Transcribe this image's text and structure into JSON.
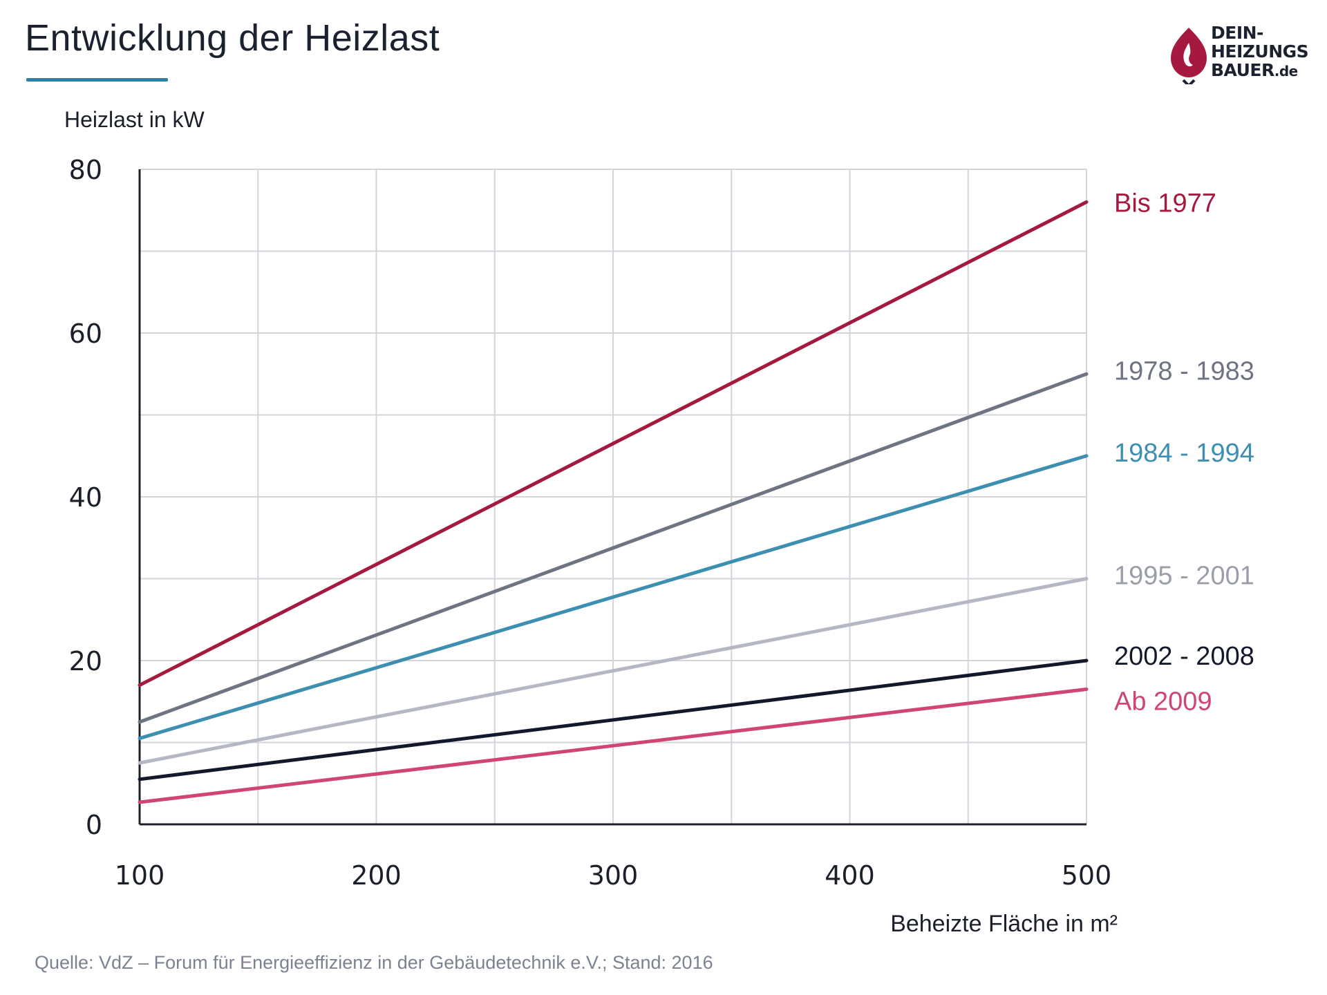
{
  "header": {
    "title": "Entwicklung der Heizlast"
  },
  "logo": {
    "line1": "DEIN-",
    "line2": "HEIZUNGS",
    "line3": "BAUER",
    "tld": ".de",
    "brand_color": "#a5193f"
  },
  "footer": {
    "source": "Quelle: VdZ – Forum für Energieeffizienz in der Gebäudetechnik e.V.; Stand: 2016"
  },
  "chart_data": {
    "type": "line",
    "title": "Entwicklung der Heizlast",
    "ylabel": "Heizlast in kW",
    "xlabel": "Beheizte Fläche in m²",
    "xlim": [
      100,
      500
    ],
    "ylim": [
      0,
      80
    ],
    "x_ticks": [
      100,
      200,
      300,
      400,
      500
    ],
    "y_ticks": [
      0,
      20,
      40,
      60,
      80
    ],
    "x_grid": [
      100,
      150,
      200,
      250,
      300,
      350,
      400,
      450,
      500
    ],
    "y_grid": [
      0,
      10,
      20,
      30,
      40,
      50,
      60,
      70,
      80
    ],
    "grid": true,
    "x": [
      100,
      500
    ],
    "series": [
      {
        "name": "Bis 1977",
        "values": [
          17,
          76
        ],
        "color": "#a5193f"
      },
      {
        "name": "1978 - 1983",
        "values": [
          12.5,
          55
        ],
        "color": "#6f7482"
      },
      {
        "name": "1984 - 1994",
        "values": [
          10.5,
          45
        ],
        "color": "#3c8fb1"
      },
      {
        "name": "1995 - 2001",
        "values": [
          7.5,
          30
        ],
        "color": "#b5b8c4"
      },
      {
        "name": "2002 - 2008",
        "values": [
          5.5,
          20
        ],
        "color": "#13192b"
      },
      {
        "name": "Ab 2009",
        "values": [
          2.7,
          16.5
        ],
        "color": "#d04575"
      }
    ]
  }
}
